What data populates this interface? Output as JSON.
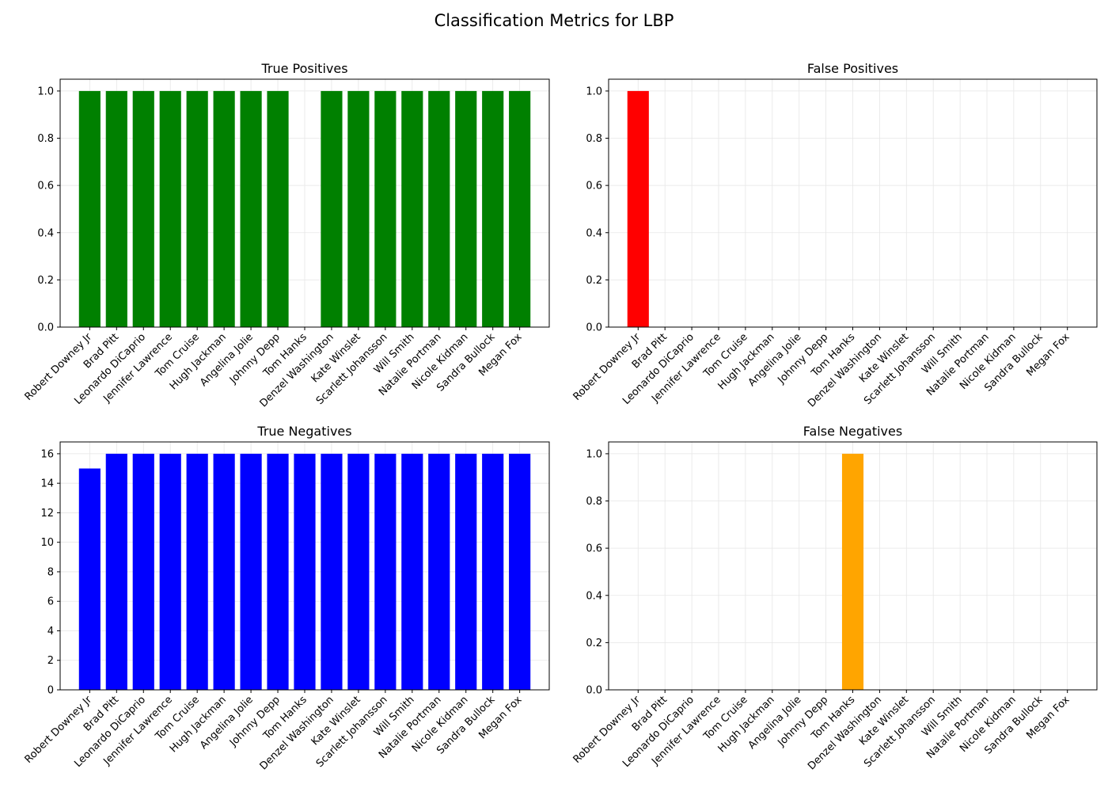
{
  "figure": {
    "title": "Classification Metrics for LBP"
  },
  "chart_data": [
    {
      "type": "bar",
      "title": "True Positives",
      "color": "#008000",
      "categories": [
        "Robert Downey Jr",
        "Brad Pitt",
        "Leonardo DiCaprio",
        "Jennifer Lawrence",
        "Tom Cruise",
        "Hugh Jackman",
        "Angelina Jolie",
        "Johnny Depp",
        "Tom Hanks",
        "Denzel Washington",
        "Kate Winslet",
        "Scarlett Johansson",
        "Will Smith",
        "Natalie Portman",
        "Nicole Kidman",
        "Sandra Bullock",
        "Megan Fox"
      ],
      "values": [
        1,
        1,
        1,
        1,
        1,
        1,
        1,
        1,
        0,
        1,
        1,
        1,
        1,
        1,
        1,
        1,
        1
      ],
      "ylim": [
        0,
        1.05
      ],
      "yticks": [
        0.0,
        0.2,
        0.4,
        0.6,
        0.8,
        1.0
      ],
      "ytick_labels": [
        "0.0",
        "0.2",
        "0.4",
        "0.6",
        "0.8",
        "1.0"
      ],
      "grid": true
    },
    {
      "type": "bar",
      "title": "False Positives",
      "color": "#ff0000",
      "categories": [
        "Robert Downey Jr",
        "Brad Pitt",
        "Leonardo DiCaprio",
        "Jennifer Lawrence",
        "Tom Cruise",
        "Hugh Jackman",
        "Angelina Jolie",
        "Johnny Depp",
        "Tom Hanks",
        "Denzel Washington",
        "Kate Winslet",
        "Scarlett Johansson",
        "Will Smith",
        "Natalie Portman",
        "Nicole Kidman",
        "Sandra Bullock",
        "Megan Fox"
      ],
      "values": [
        1,
        0,
        0,
        0,
        0,
        0,
        0,
        0,
        0,
        0,
        0,
        0,
        0,
        0,
        0,
        0,
        0
      ],
      "ylim": [
        0,
        1.05
      ],
      "yticks": [
        0.0,
        0.2,
        0.4,
        0.6,
        0.8,
        1.0
      ],
      "ytick_labels": [
        "0.0",
        "0.2",
        "0.4",
        "0.6",
        "0.8",
        "1.0"
      ],
      "grid": true
    },
    {
      "type": "bar",
      "title": "True Negatives",
      "color": "#0000ff",
      "categories": [
        "Robert Downey Jr",
        "Brad Pitt",
        "Leonardo DiCaprio",
        "Jennifer Lawrence",
        "Tom Cruise",
        "Hugh Jackman",
        "Angelina Jolie",
        "Johnny Depp",
        "Tom Hanks",
        "Denzel Washington",
        "Kate Winslet",
        "Scarlett Johansson",
        "Will Smith",
        "Natalie Portman",
        "Nicole Kidman",
        "Sandra Bullock",
        "Megan Fox"
      ],
      "values": [
        15,
        16,
        16,
        16,
        16,
        16,
        16,
        16,
        16,
        16,
        16,
        16,
        16,
        16,
        16,
        16,
        16
      ],
      "ylim": [
        0,
        16.8
      ],
      "yticks": [
        0,
        2,
        4,
        6,
        8,
        10,
        12,
        14,
        16
      ],
      "ytick_labels": [
        "0",
        "2",
        "4",
        "6",
        "8",
        "10",
        "12",
        "14",
        "16"
      ],
      "grid": true
    },
    {
      "type": "bar",
      "title": "False Negatives",
      "color": "#ffa500",
      "categories": [
        "Robert Downey Jr",
        "Brad Pitt",
        "Leonardo DiCaprio",
        "Jennifer Lawrence",
        "Tom Cruise",
        "Hugh Jackman",
        "Angelina Jolie",
        "Johnny Depp",
        "Tom Hanks",
        "Denzel Washington",
        "Kate Winslet",
        "Scarlett Johansson",
        "Will Smith",
        "Natalie Portman",
        "Nicole Kidman",
        "Sandra Bullock",
        "Megan Fox"
      ],
      "values": [
        0,
        0,
        0,
        0,
        0,
        0,
        0,
        0,
        1,
        0,
        0,
        0,
        0,
        0,
        0,
        0,
        0
      ],
      "ylim": [
        0,
        1.05
      ],
      "yticks": [
        0.0,
        0.2,
        0.4,
        0.6,
        0.8,
        1.0
      ],
      "ytick_labels": [
        "0.0",
        "0.2",
        "0.4",
        "0.6",
        "0.8",
        "1.0"
      ],
      "grid": true
    }
  ]
}
